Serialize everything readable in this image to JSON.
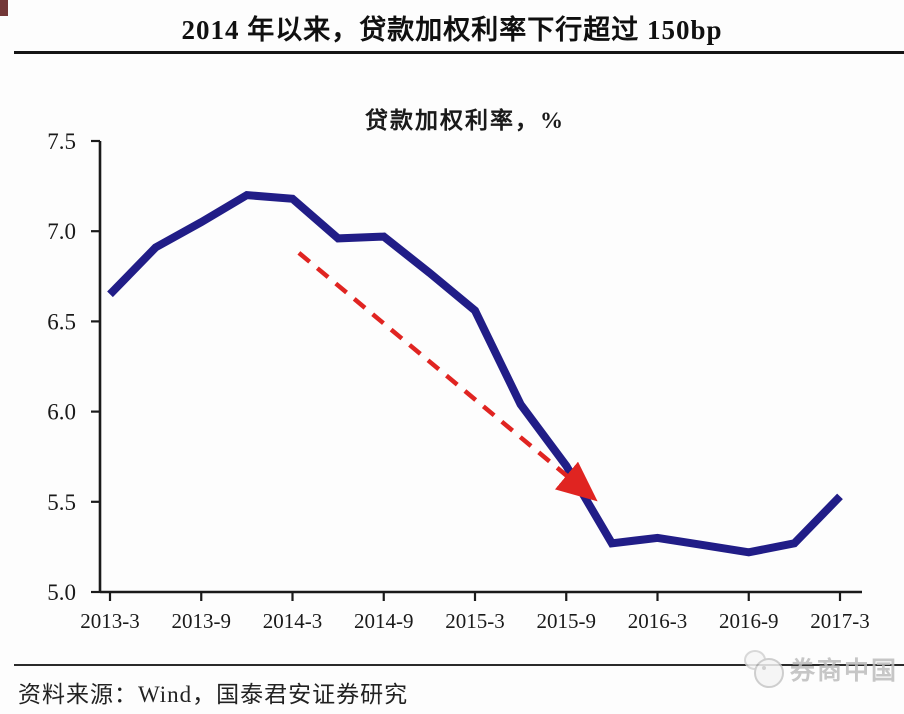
{
  "header": {
    "title": "2014 年以来，贷款加权利率下行超过 150bp"
  },
  "chart_data": {
    "type": "line",
    "title": "贷款加权利率，%",
    "x": [
      "2013-3",
      "2013-6",
      "2013-9",
      "2013-12",
      "2014-3",
      "2014-6",
      "2014-9",
      "2014-12",
      "2015-3",
      "2015-6",
      "2015-9",
      "2015-12",
      "2016-3",
      "2016-6",
      "2016-9",
      "2016-12",
      "2017-3"
    ],
    "series": [
      {
        "name": "贷款加权利率",
        "values": [
          6.65,
          6.91,
          7.05,
          7.2,
          7.18,
          6.96,
          6.97,
          6.77,
          6.56,
          6.04,
          5.7,
          5.27,
          5.3,
          5.26,
          5.22,
          5.27,
          5.53
        ]
      }
    ],
    "x_tick_labels": [
      "2013-3",
      "2013-9",
      "2014-3",
      "2014-9",
      "2015-3",
      "2015-9",
      "2016-3",
      "2016-9",
      "2017-3"
    ],
    "y_ticks": [
      5.0,
      5.5,
      6.0,
      6.5,
      7.0,
      7.5
    ],
    "ylim": [
      5.0,
      7.5
    ],
    "grid": false,
    "legend_position": "none",
    "annotation": {
      "type": "dashed-arrow",
      "from": {
        "x_index": 4.14,
        "value": 6.88
      },
      "to": {
        "x_index": 10.46,
        "value": 5.55
      }
    }
  },
  "footer": {
    "source": "资料来源：Wind，国泰君安证券研究",
    "watermark": "券商中国"
  },
  "colors": {
    "line": "#211d87",
    "arrow": "#e02421",
    "axis": "#1a1a1a",
    "text": "#1a1a1a",
    "watermark": "#bdbdbd"
  }
}
